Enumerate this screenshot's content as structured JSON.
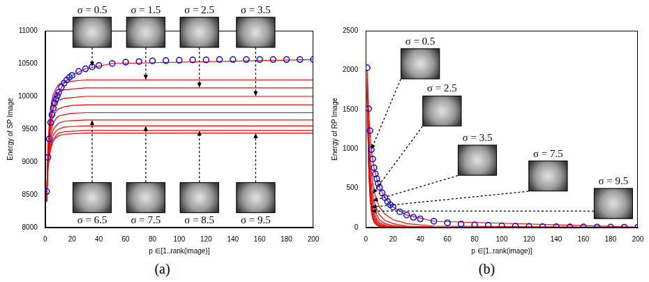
{
  "chart_data": [
    {
      "type": "line",
      "panel": "(a)",
      "xlabel": "p ∈[1..rank(image)]",
      "ylabel": "Energy of SP Image",
      "xlim": [
        0,
        200
      ],
      "xticks": [
        0,
        20,
        40,
        60,
        80,
        100,
        120,
        140,
        160,
        180,
        200
      ],
      "ylim": [
        8000,
        11000
      ],
      "yticks": [
        8000,
        8500,
        9000,
        9500,
        10000,
        10500,
        11000
      ],
      "grid": false,
      "series": [
        {
          "color": "#0000ff",
          "marker": "circle",
          "line_style": "none",
          "x": [
            1,
            2,
            3,
            4,
            5,
            6,
            7,
            8,
            9,
            10,
            12,
            14,
            16,
            18,
            20,
            25,
            30,
            35,
            40,
            50,
            60,
            70,
            80,
            90,
            100,
            110,
            120,
            130,
            140,
            150,
            160,
            170,
            180,
            190,
            200
          ],
          "values": [
            8550,
            9070,
            9350,
            9600,
            9720,
            9820,
            9900,
            9960,
            10010,
            10060,
            10140,
            10200,
            10250,
            10290,
            10320,
            10380,
            10420,
            10450,
            10470,
            10500,
            10520,
            10530,
            10540,
            10545,
            10550,
            10555,
            10555,
            10560,
            10560,
            10560,
            10560,
            10560,
            10560,
            10560,
            10560
          ]
        },
        {
          "color": "#ff0000",
          "marker": "none",
          "line_style": "solid",
          "x": [
            1,
            2,
            3,
            4,
            5,
            6,
            8,
            10,
            14,
            20,
            30,
            50,
            200
          ],
          "values": [
            8400,
            9070,
            9350,
            9600,
            9720,
            9820,
            9960,
            10060,
            10200,
            10320,
            10420,
            10500,
            10560
          ]
        },
        {
          "color": "#ff0000",
          "marker": "none",
          "line_style": "solid",
          "x": [
            1,
            2,
            3,
            4,
            5,
            6,
            8,
            10,
            14,
            20,
            30,
            50,
            200
          ],
          "values": [
            8400,
            9230,
            9600,
            9810,
            9940,
            10030,
            10120,
            10180,
            10210,
            10230,
            10250,
            10250,
            10250
          ]
        },
        {
          "color": "#ff0000",
          "marker": "none",
          "line_style": "solid",
          "x": [
            1,
            2,
            3,
            4,
            5,
            6,
            8,
            10,
            14,
            20,
            30,
            50,
            200
          ],
          "values": [
            8400,
            9180,
            9520,
            9710,
            9840,
            9920,
            10010,
            10060,
            10100,
            10110,
            10130,
            10130,
            10130
          ]
        },
        {
          "color": "#ff0000",
          "marker": "none",
          "line_style": "solid",
          "x": [
            1,
            2,
            3,
            4,
            5,
            6,
            8,
            10,
            14,
            20,
            30,
            50,
            200
          ],
          "values": [
            8400,
            9120,
            9440,
            9620,
            9730,
            9810,
            9890,
            9940,
            9970,
            9980,
            10000,
            10000,
            10000
          ]
        },
        {
          "color": "#ff0000",
          "marker": "none",
          "line_style": "solid",
          "x": [
            1,
            2,
            3,
            4,
            5,
            6,
            8,
            10,
            14,
            20,
            30,
            50,
            200
          ],
          "values": [
            8400,
            9060,
            9360,
            9520,
            9620,
            9690,
            9770,
            9810,
            9840,
            9860,
            9870,
            9870,
            9870
          ]
        },
        {
          "color": "#ff0000",
          "marker": "none",
          "line_style": "solid",
          "x": [
            1,
            2,
            3,
            4,
            5,
            6,
            8,
            10,
            14,
            20,
            30,
            50,
            200
          ],
          "values": [
            8400,
            9010,
            9280,
            9430,
            9520,
            9590,
            9660,
            9700,
            9720,
            9740,
            9750,
            9750,
            9750
          ]
        },
        {
          "color": "#ff0000",
          "marker": "none",
          "line_style": "solid",
          "x": [
            1,
            2,
            3,
            4,
            5,
            6,
            8,
            10,
            14,
            20,
            30,
            50,
            200
          ],
          "values": [
            8400,
            8960,
            9210,
            9340,
            9430,
            9490,
            9550,
            9590,
            9620,
            9630,
            9640,
            9640,
            9640
          ]
        },
        {
          "color": "#ff0000",
          "marker": "none",
          "line_style": "solid",
          "x": [
            1,
            2,
            3,
            4,
            5,
            6,
            8,
            10,
            14,
            20,
            30,
            50,
            200
          ],
          "values": [
            8400,
            8920,
            9150,
            9270,
            9350,
            9410,
            9470,
            9500,
            9530,
            9540,
            9550,
            9550,
            9550
          ]
        },
        {
          "color": "#ff0000",
          "marker": "none",
          "line_style": "solid",
          "x": [
            1,
            2,
            3,
            4,
            5,
            6,
            8,
            10,
            14,
            20,
            30,
            50,
            200
          ],
          "values": [
            8400,
            8890,
            9100,
            9220,
            9300,
            9350,
            9400,
            9440,
            9460,
            9470,
            9480,
            9480,
            9480
          ]
        },
        {
          "color": "#ff0000",
          "marker": "none",
          "line_style": "solid",
          "x": [
            1,
            2,
            3,
            4,
            5,
            6,
            8,
            10,
            14,
            20,
            30,
            50,
            200
          ],
          "values": [
            8400,
            8870,
            9080,
            9190,
            9260,
            9320,
            9370,
            9400,
            9420,
            9430,
            9440,
            9440,
            9440
          ]
        }
      ],
      "annotations": [
        {
          "text": "σ = 0.5",
          "x": 35,
          "y": 10450
        },
        {
          "text": "σ = 1.5",
          "x": 75,
          "y": 10250
        },
        {
          "text": "σ = 2.5",
          "x": 115,
          "y": 10130
        },
        {
          "text": "σ = 3.5",
          "x": 157,
          "y": 10000
        },
        {
          "text": "σ = 6.5",
          "x": 35,
          "y": 9640
        },
        {
          "text": "σ = 7.5",
          "x": 75,
          "y": 9550
        },
        {
          "text": "σ = 8.5",
          "x": 115,
          "y": 9480
        },
        {
          "text": "σ = 9.5",
          "x": 157,
          "y": 9440
        }
      ]
    },
    {
      "type": "line",
      "panel": "(b)",
      "xlabel": "p ∈[1..rank(image)]",
      "ylabel": "Energy of RP Image",
      "xlim": [
        0,
        200
      ],
      "xticks": [
        0,
        20,
        40,
        60,
        80,
        100,
        120,
        140,
        160,
        180,
        200
      ],
      "ylim": [
        0,
        2500
      ],
      "yticks": [
        0,
        500,
        1000,
        1500,
        2000,
        2500
      ],
      "grid": false,
      "series": [
        {
          "color": "#0000ff",
          "marker": "circle",
          "line_style": "none",
          "x": [
            1,
            2,
            3,
            4,
            5,
            6,
            7,
            8,
            9,
            10,
            12,
            14,
            16,
            18,
            20,
            25,
            30,
            35,
            40,
            50,
            60,
            70,
            80,
            90,
            100,
            110,
            120,
            130,
            140,
            150,
            160,
            170,
            180,
            190,
            200
          ],
          "values": [
            2030,
            1510,
            1230,
            990,
            870,
            760,
            680,
            620,
            560,
            510,
            440,
            380,
            330,
            290,
            260,
            200,
            160,
            130,
            110,
            80,
            60,
            45,
            35,
            28,
            22,
            18,
            15,
            12,
            10,
            9,
            8,
            7,
            6,
            5,
            5
          ]
        },
        {
          "color": "#ff0000",
          "marker": "none",
          "line_style": "solid",
          "x": [
            1,
            2,
            3,
            4,
            5,
            6,
            8,
            10,
            14,
            20,
            30,
            50,
            200
          ],
          "values": [
            2000,
            1510,
            1230,
            990,
            870,
            760,
            620,
            510,
            380,
            260,
            160,
            80,
            5
          ]
        },
        {
          "color": "#ff0000",
          "marker": "none",
          "line_style": "solid",
          "x": [
            1,
            2,
            3,
            4,
            5,
            6,
            8,
            10,
            14,
            20,
            30,
            50,
            200
          ],
          "values": [
            1950,
            1300,
            950,
            720,
            580,
            470,
            340,
            260,
            170,
            100,
            50,
            20,
            2
          ]
        },
        {
          "color": "#ff0000",
          "marker": "none",
          "line_style": "solid",
          "x": [
            1,
            2,
            3,
            4,
            5,
            6,
            8,
            10,
            14,
            20,
            30,
            50,
            200
          ],
          "values": [
            1900,
            1150,
            780,
            560,
            430,
            340,
            230,
            160,
            90,
            50,
            20,
            8,
            1
          ]
        },
        {
          "color": "#ff0000",
          "marker": "none",
          "line_style": "solid",
          "x": [
            1,
            2,
            3,
            4,
            5,
            6,
            8,
            10,
            14,
            20,
            30,
            50,
            200
          ],
          "values": [
            1850,
            1050,
            680,
            460,
            340,
            260,
            160,
            100,
            50,
            25,
            10,
            4,
            0
          ]
        },
        {
          "color": "#ff0000",
          "marker": "none",
          "line_style": "solid",
          "x": [
            1,
            2,
            3,
            4,
            5,
            6,
            8,
            10,
            14,
            20,
            30,
            50,
            200
          ],
          "values": [
            1800,
            980,
            600,
            390,
            270,
            190,
            110,
            65,
            30,
            12,
            5,
            2,
            0
          ]
        },
        {
          "color": "#ff0000",
          "marker": "none",
          "line_style": "solid",
          "x": [
            1,
            2,
            3,
            4,
            5,
            6,
            8,
            10,
            14,
            20,
            30,
            50,
            200
          ],
          "values": [
            1760,
            920,
            540,
            330,
            220,
            150,
            80,
            45,
            18,
            7,
            3,
            1,
            0
          ]
        },
        {
          "color": "#ff0000",
          "marker": "none",
          "line_style": "solid",
          "x": [
            1,
            2,
            3,
            4,
            5,
            6,
            8,
            10,
            14,
            20,
            30,
            50,
            200
          ],
          "values": [
            1730,
            870,
            490,
            290,
            180,
            120,
            60,
            30,
            12,
            5,
            2,
            0,
            0
          ]
        },
        {
          "color": "#ff0000",
          "marker": "none",
          "line_style": "solid",
          "x": [
            1,
            2,
            3,
            4,
            5,
            6,
            8,
            10,
            14,
            20,
            30,
            50,
            200
          ],
          "values": [
            1700,
            830,
            450,
            260,
            150,
            100,
            45,
            22,
            8,
            3,
            1,
            0,
            0
          ]
        },
        {
          "color": "#ff0000",
          "marker": "none",
          "line_style": "solid",
          "x": [
            1,
            2,
            3,
            4,
            5,
            6,
            8,
            10,
            14,
            20,
            30,
            50,
            200
          ],
          "values": [
            1680,
            800,
            420,
            230,
            130,
            80,
            35,
            16,
            6,
            2,
            0,
            0,
            0
          ]
        },
        {
          "color": "#ff0000",
          "marker": "none",
          "line_style": "solid",
          "x": [
            1,
            2,
            3,
            4,
            5,
            6,
            8,
            10,
            14,
            20,
            30,
            50,
            200
          ],
          "values": [
            1660,
            780,
            400,
            210,
            115,
            70,
            28,
            12,
            4,
            1,
            0,
            0,
            0
          ]
        }
      ],
      "annotations": [
        {
          "text": "σ = 0.5",
          "x": 4,
          "y": 990
        },
        {
          "text": "σ = 2.5",
          "x": 5,
          "y": 430
        },
        {
          "text": "σ = 3.5",
          "x": 5,
          "y": 340
        },
        {
          "text": "σ = 7.5",
          "x": 4,
          "y": 260
        },
        {
          "text": "σ = 9.5",
          "x": 4,
          "y": 210
        }
      ]
    }
  ]
}
